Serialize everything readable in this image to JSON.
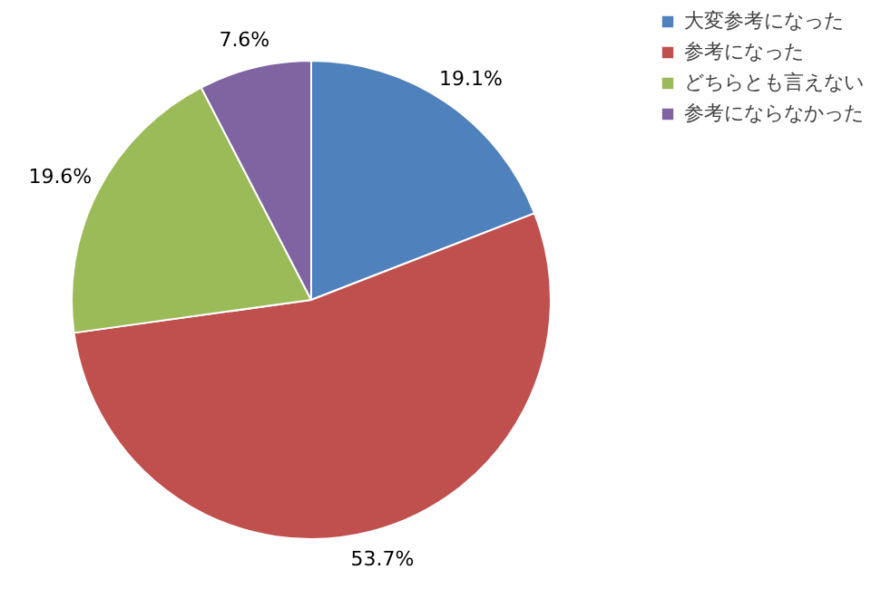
{
  "chart_data": {
    "type": "pie",
    "categories": [
      "大変参考になった",
      "参考になった",
      "どちらとも言えない",
      "参考にならなかった"
    ],
    "values": [
      19.1,
      53.7,
      19.6,
      7.6
    ],
    "colors": [
      "#4f81bd",
      "#c0504d",
      "#9bbb59",
      "#8064a2"
    ],
    "value_labels": [
      "19.1%",
      "53.7%",
      "19.6%",
      "7.6%"
    ],
    "legend": "top right"
  }
}
